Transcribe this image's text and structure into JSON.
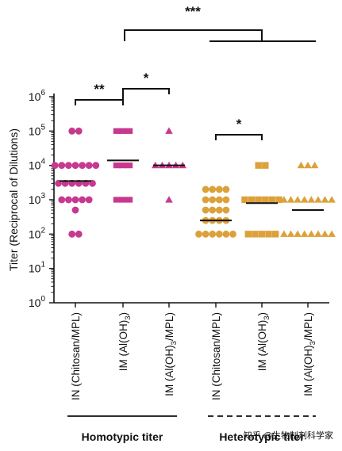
{
  "chart_data": {
    "type": "scatter",
    "title": "",
    "ylabel": "Titer (Reciprocal of Dilutions)",
    "yscale": "log10",
    "ylim": [
      1,
      1000000
    ],
    "ytick_base": "10",
    "ytick_exponents": [
      "0",
      "1",
      "2",
      "3",
      "4",
      "5",
      "6"
    ],
    "categories": [
      "IN (Chitosan/MPL)",
      "IM (Al(OH)3)",
      "IM (Al(OH)3/MPL)",
      "IN (Chitosan/MPL)",
      "IM (Al(OH)3)",
      "IM (Al(OH)3/MPL)"
    ],
    "category_parts": [
      {
        "pre": "IN (Chitosan/MPL)",
        "sub": "",
        "post": ""
      },
      {
        "pre": "IM (Al(OH)",
        "sub": "3",
        "post": ")"
      },
      {
        "pre": "IM (Al(OH)",
        "sub": "3",
        "post": "/MPL)"
      },
      {
        "pre": "IN (Chitosan/MPL)",
        "sub": "",
        "post": ""
      },
      {
        "pre": "IM (Al(OH)",
        "sub": "3",
        "post": ")"
      },
      {
        "pre": "IM (Al(OH)",
        "sub": "3",
        "post": "/MPL)"
      }
    ],
    "groups": [
      {
        "label": "Homotypic titer",
        "line": "solid",
        "categories": [
          0,
          1,
          2
        ]
      },
      {
        "label": "Heterotypic titer",
        "line": "dashed",
        "categories": [
          3,
          4,
          5
        ]
      }
    ],
    "colors": {
      "homotypic": "#c7398f",
      "heterotypic": "#dca13a",
      "text": "#111111"
    },
    "series": [
      {
        "category": 0,
        "marker": "circle",
        "color": "#c7398f",
        "mean": 3500,
        "points": [
          {
            "value": 100000,
            "count": 2
          },
          {
            "value": 10000,
            "count": 7
          },
          {
            "value": 3000,
            "count": 6
          },
          {
            "value": 1000,
            "count": 5
          },
          {
            "value": 500,
            "count": 1
          },
          {
            "value": 100,
            "count": 2
          }
        ]
      },
      {
        "category": 1,
        "marker": "rectangle",
        "color": "#c7398f",
        "mean": 14000,
        "points": [
          {
            "value": 100000,
            "count": 3
          },
          {
            "value": 10000,
            "count": 3
          },
          {
            "value": 1000,
            "count": 3
          }
        ]
      },
      {
        "category": 2,
        "marker": "triangle",
        "color": "#c7398f",
        "mean": 10000,
        "points": [
          {
            "value": 100000,
            "count": 1
          },
          {
            "value": 10000,
            "count": 5
          },
          {
            "value": 1000,
            "count": 1
          }
        ]
      },
      {
        "category": 3,
        "marker": "circle",
        "color": "#dca13a",
        "mean": 250,
        "points": [
          {
            "value": 2000,
            "count": 4
          },
          {
            "value": 1000,
            "count": 4
          },
          {
            "value": 500,
            "count": 4
          },
          {
            "value": 250,
            "count": 4
          },
          {
            "value": 100,
            "count": 6
          }
        ]
      },
      {
        "category": 4,
        "marker": "square",
        "color": "#dca13a",
        "mean": 800,
        "points": [
          {
            "value": 10000,
            "count": 2
          },
          {
            "value": 1000,
            "count": 6
          },
          {
            "value": 100,
            "count": 5
          }
        ]
      },
      {
        "category": 5,
        "marker": "triangle",
        "color": "#dca13a",
        "mean": 500,
        "points": [
          {
            "value": 10000,
            "count": 3
          },
          {
            "value": 1000,
            "count": 8
          },
          {
            "value": 100,
            "count": 8
          }
        ]
      }
    ],
    "significance": [
      {
        "label": "***",
        "from": "homotypic",
        "to": "heterotypic"
      },
      {
        "label": "**",
        "from": 0,
        "to": 1
      },
      {
        "label": "*",
        "from": 1,
        "to": 2
      },
      {
        "label": "*",
        "from": 3,
        "to": 4
      }
    ],
    "watermark": "知乎 @生物制剂科学家"
  }
}
